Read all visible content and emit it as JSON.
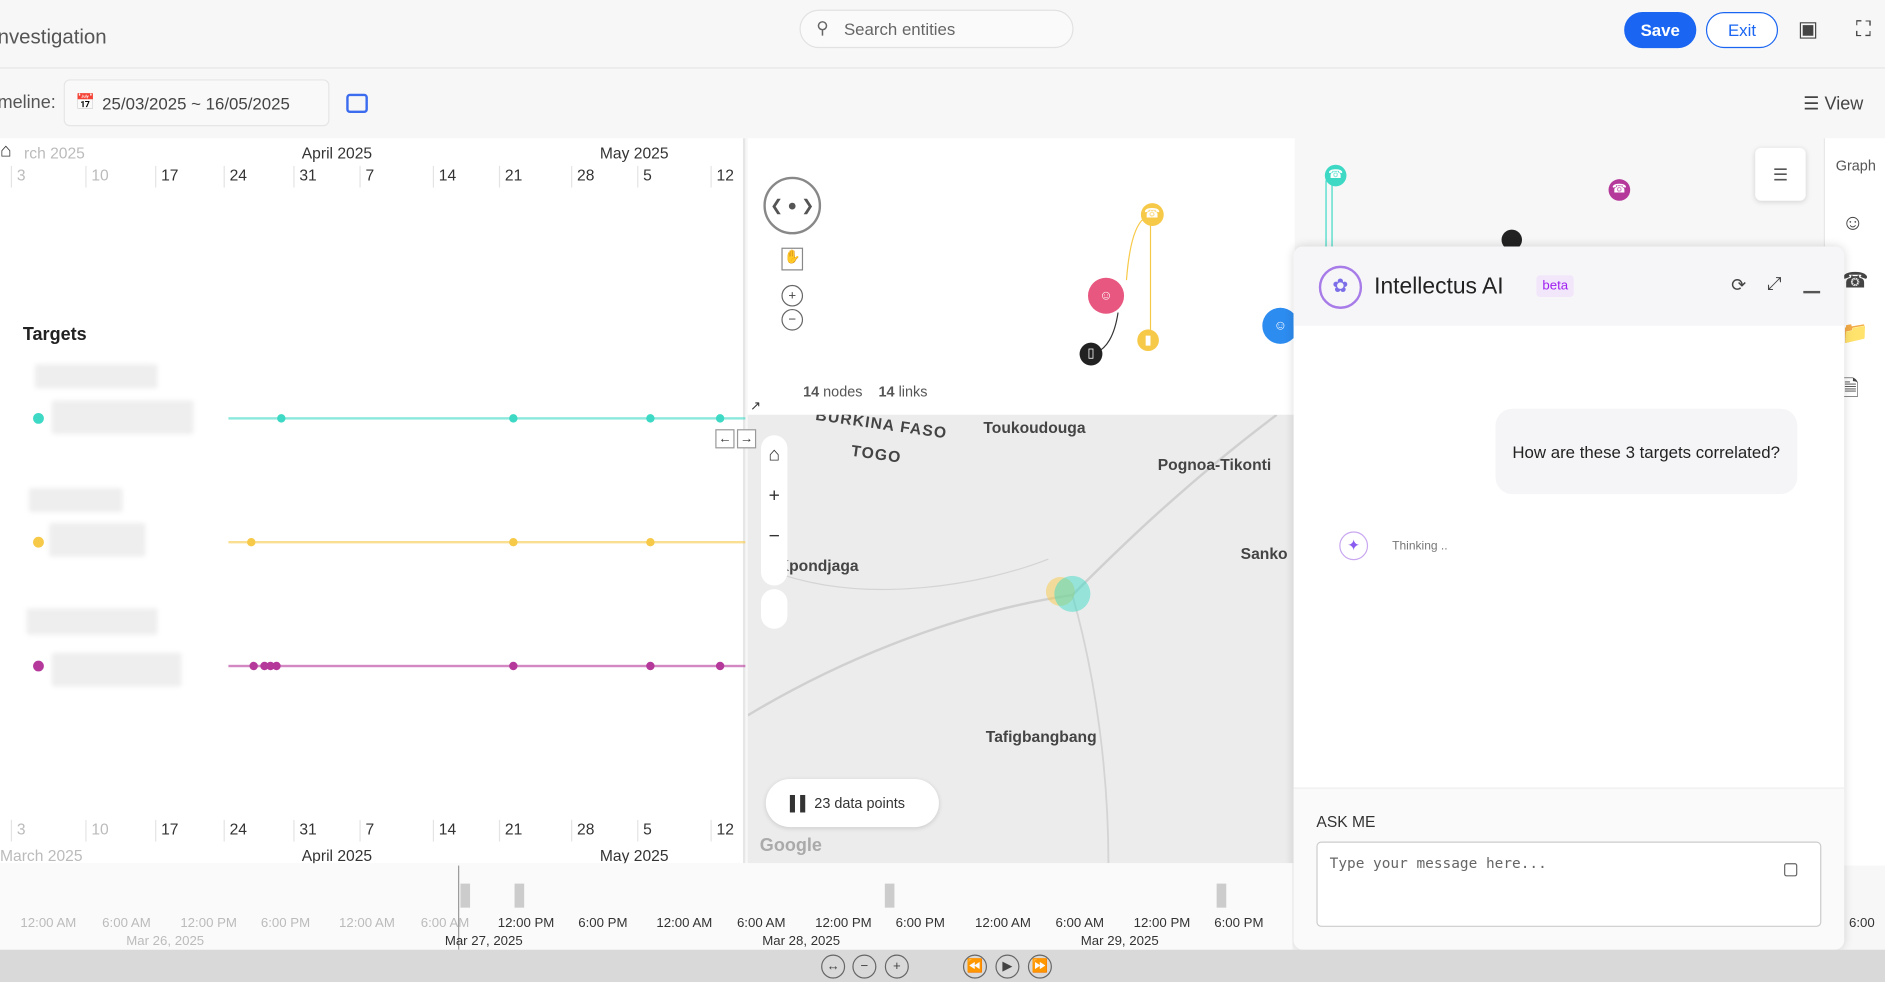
{
  "header": {
    "title": "nvestigation",
    "search_placeholder": "Search entities",
    "save_label": "Save",
    "exit_label": "Exit"
  },
  "toolbar": {
    "timeline_label": "meline:",
    "date_range": "25/03/2025 ~ 16/05/2025",
    "view_label": "View"
  },
  "timeline": {
    "months_top": [
      "rch 2025",
      "April 2025",
      "May 2025"
    ],
    "months_bottom": [
      "March 2025",
      "April 2025",
      "May 2025"
    ],
    "weeks": [
      "3",
      "10",
      "17",
      "24",
      "31",
      "7",
      "14",
      "21",
      "28",
      "5",
      "12"
    ],
    "targets_heading": "Targets",
    "colors": {
      "teal": "#3dd9c5",
      "yellow": "#f7c948",
      "purple": "#b5389b"
    }
  },
  "graph": {
    "nodes_count": "14",
    "nodes_label": "nodes",
    "links_count": "14",
    "links_label": "links"
  },
  "map": {
    "labels": [
      "BURKINA FASO",
      "TOGO",
      "Toukoudouga",
      "Pognoa-Tikonti",
      "Sanko",
      "Kpondjaga",
      "Tafigbangbang"
    ],
    "data_points": "23 data points",
    "attribution": "Google"
  },
  "ai": {
    "title": "Intellectus AI",
    "badge": "beta",
    "user_message": "How are these 3 targets correlated?",
    "status": "Thinking ..",
    "ask_label": "ASK ME",
    "input_placeholder": "Type your message here..."
  },
  "sidebar": {
    "graph_label": "Graph"
  },
  "bottom_timeline": {
    "hours": [
      "12:00 AM",
      "6:00 AM",
      "12:00 PM",
      "6:00 PM",
      "12:00 AM",
      "6:00 AM",
      "12:00 PM",
      "6:00 PM",
      "12:00 AM",
      "6:00 AM",
      "12:00 PM",
      "6:00 PM",
      "12:00 AM",
      "6:00 AM",
      "12:00 PM",
      "6:00 PM",
      "6:00"
    ],
    "days": [
      "Mar 26, 2025",
      "Mar 27, 2025",
      "Mar 28, 2025",
      "Mar 29, 2025"
    ]
  }
}
